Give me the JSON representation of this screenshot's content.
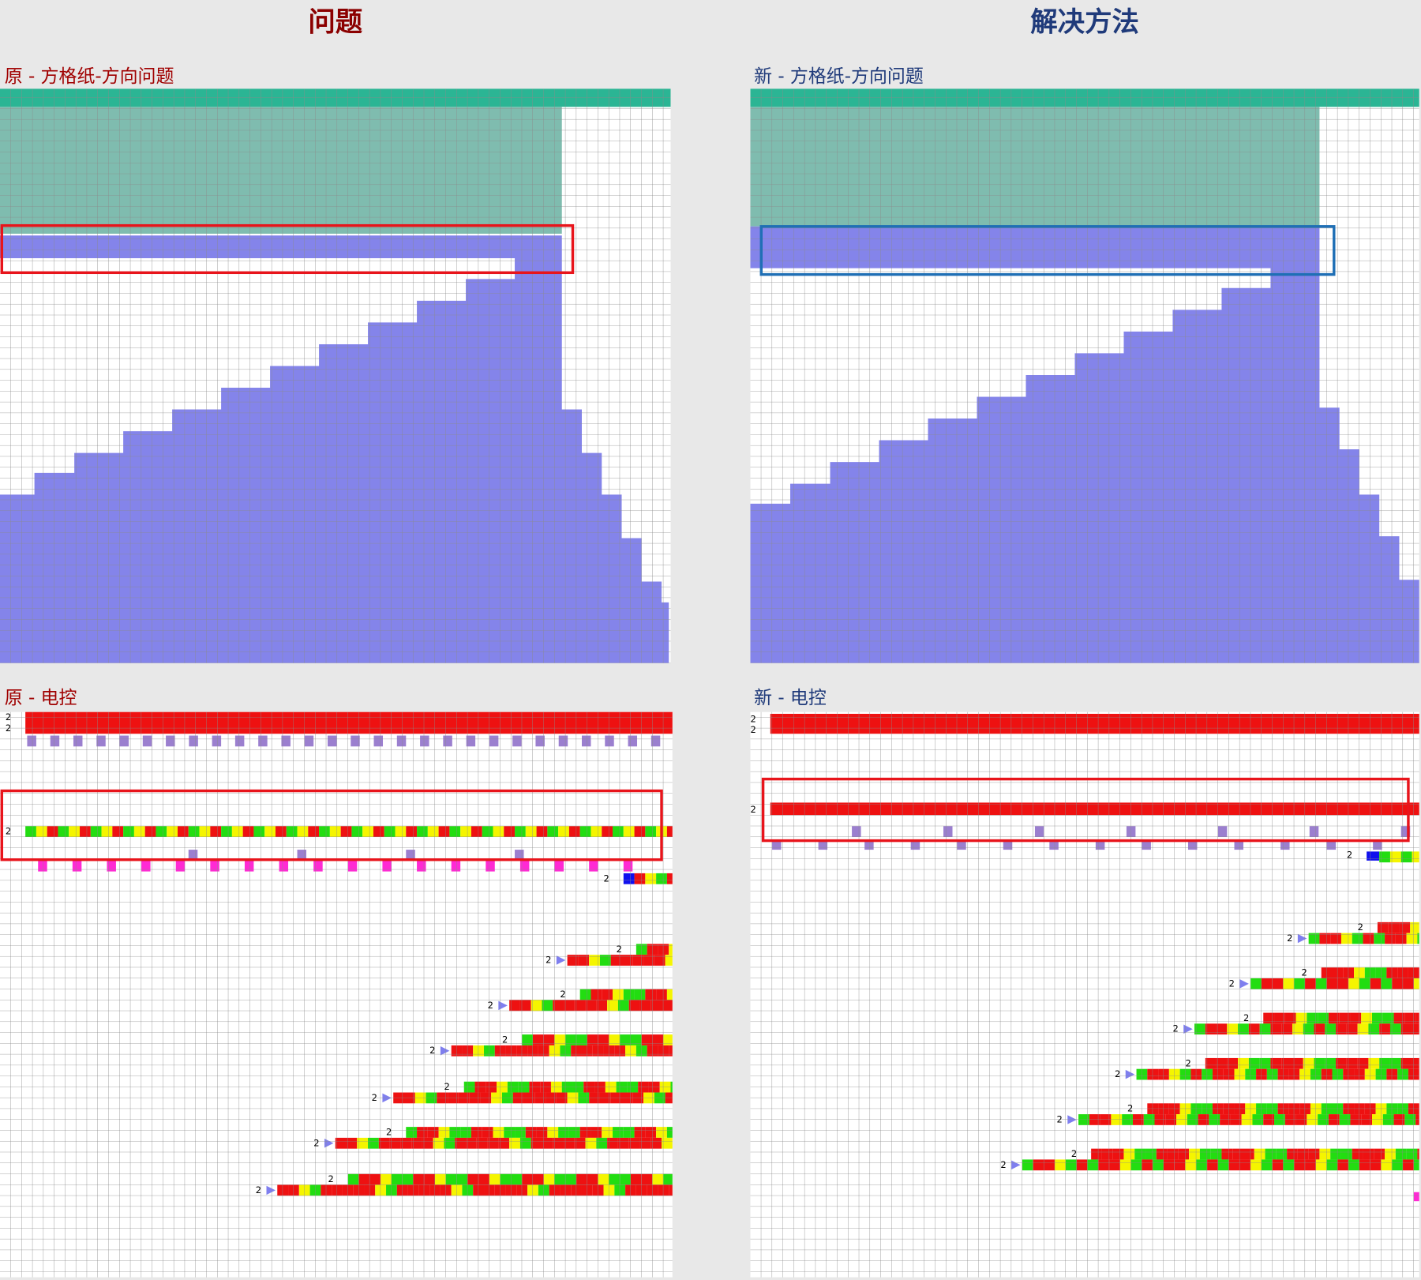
{
  "header": {
    "problem": "问题",
    "solution": "解决方法"
  },
  "panels": [
    {
      "title": "原 - 方格纸-方向问题"
    },
    {
      "title": "新 - 方格纸-方向问题"
    },
    {
      "title": "原 - 电控",
      "row_labels": [
        "2",
        "2",
        "2",
        "2",
        "2",
        "2",
        "2",
        "2",
        "2",
        "2",
        "2",
        "2",
        "2",
        "2",
        "2",
        "2"
      ]
    },
    {
      "title": "新 - 电控",
      "row_labels": [
        "2",
        "2",
        "2",
        "2",
        "2",
        "2",
        "2",
        "2",
        "2",
        "2",
        "2",
        "2",
        "2",
        "2",
        "2",
        "2"
      ]
    }
  ]
}
